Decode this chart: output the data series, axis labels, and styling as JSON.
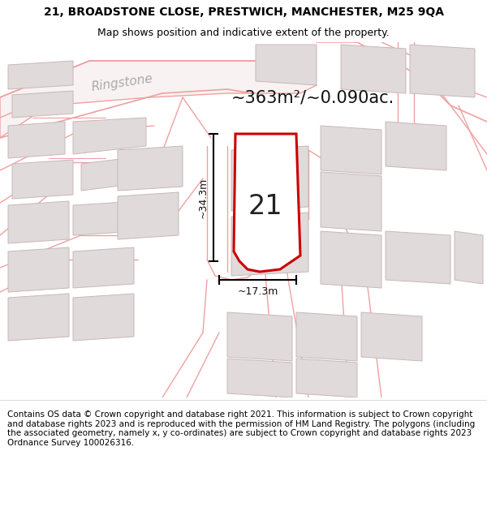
{
  "title_line1": "21, BROADSTONE CLOSE, PRESTWICH, MANCHESTER, M25 9QA",
  "title_line2": "Map shows position and indicative extent of the property.",
  "area_text": "~363m²/~0.090ac.",
  "number_label": "21",
  "dim_vertical": "~34.3m",
  "dim_horizontal": "~17.3m",
  "road_label": "Ringstone",
  "footer_line1": "Contains OS data © Crown copyright and database right 2021. This information is subject to Crown copyright and database rights 2023 and is reproduced with the permission of",
  "footer_line2": "HM Land Registry. The polygons (including the associated geometry, namely x, y co-ordinates) are subject to Crown copyright and database rights 2023 Ordnance Survey",
  "footer_line3": "100026316.",
  "bg_color": "#ffffff",
  "map_bg": "#ffffff",
  "road_color": "#f0a0a0",
  "building_fill": "#e0dada",
  "building_edge": "#c8b8b8",
  "highlight_color": "#cc0000",
  "dim_color": "#111111",
  "road_label_color": "#aaaaaa",
  "title_fontsize": 10,
  "subtitle_fontsize": 9,
  "area_fontsize": 15,
  "num_fontsize": 24,
  "dim_fontsize": 9,
  "road_label_fontsize": 11,
  "footer_fontsize": 7.5
}
